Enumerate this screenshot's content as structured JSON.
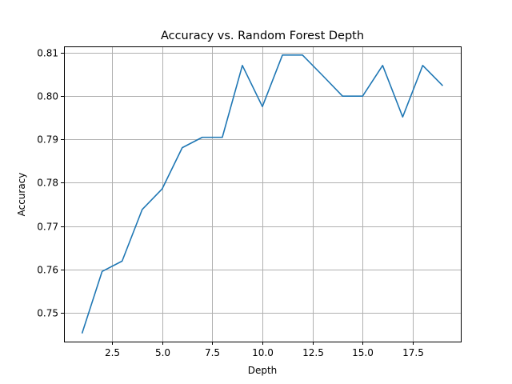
{
  "chart_data": {
    "type": "line",
    "title": "Accuracy vs. Random Forest Depth",
    "xlabel": "Depth",
    "ylabel": "Accuracy",
    "xlim": [
      0.1,
      19.9
    ],
    "ylim": [
      0.7433,
      0.8115
    ],
    "xticks": [
      2.5,
      5.0,
      7.5,
      10.0,
      12.5,
      15.0,
      17.5
    ],
    "xtick_labels": [
      "2.5",
      "5.0",
      "7.5",
      "10.0",
      "12.5",
      "15.0",
      "17.5"
    ],
    "yticks": [
      0.75,
      0.76,
      0.77,
      0.78,
      0.79,
      0.8,
      0.81
    ],
    "ytick_labels": [
      "0.75",
      "0.76",
      "0.77",
      "0.78",
      "0.79",
      "0.80",
      "0.81"
    ],
    "grid": true,
    "series": [
      {
        "color": "#1f77b4",
        "x": [
          1,
          2,
          3,
          4,
          5,
          6,
          7,
          8,
          9,
          10,
          11,
          12,
          13,
          14,
          15,
          16,
          17,
          18,
          19
        ],
        "y": [
          0.7452,
          0.7595,
          0.7619,
          0.7738,
          0.7786,
          0.7881,
          0.7905,
          0.7905,
          0.8071,
          0.7976,
          0.8095,
          0.8095,
          0.8048,
          0.8,
          0.8,
          0.8071,
          0.7952,
          0.8071,
          0.8024
        ]
      }
    ]
  }
}
